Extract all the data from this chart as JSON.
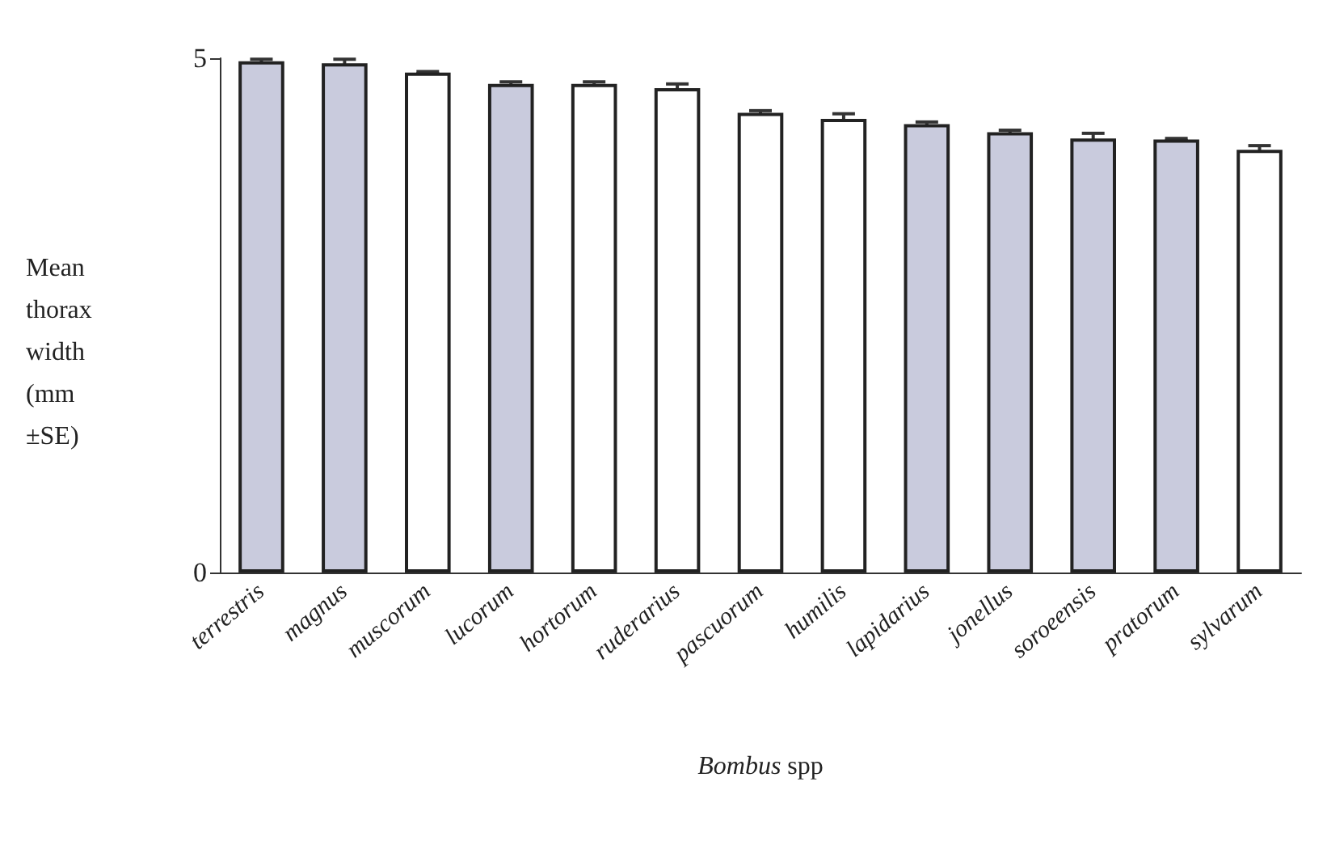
{
  "chart_data": {
    "type": "bar",
    "xlabel": "Bombus spp",
    "ylabel": "Mean thorax width (mm ±SE)",
    "categories": [
      "terrestris",
      "magnus",
      "muscorum",
      "lucorum",
      "hortorum",
      "ruderarius",
      "pascuorum",
      "humilis",
      "lapidarius",
      "jonellus",
      "soroeensis",
      "pratorum",
      "sylvarum"
    ],
    "values": [
      4.97,
      4.95,
      4.86,
      4.75,
      4.75,
      4.71,
      4.47,
      4.41,
      4.36,
      4.28,
      4.22,
      4.21,
      4.11
    ],
    "errors": [
      0.02,
      0.04,
      0.01,
      0.02,
      0.02,
      0.04,
      0.02,
      0.05,
      0.02,
      0.02,
      0.05,
      0.01,
      0.04
    ],
    "colors": [
      "#c9cbdd",
      "#c9cbdd",
      "#ffffff",
      "#c9cbdd",
      "#ffffff",
      "#ffffff",
      "#ffffff",
      "#ffffff",
      "#c9cbdd",
      "#c9cbdd",
      "#c9cbdd",
      "#c9cbdd",
      "#ffffff"
    ],
    "ylim": [
      0,
      5
    ],
    "yticks": [
      0,
      5
    ],
    "grid": false
  }
}
